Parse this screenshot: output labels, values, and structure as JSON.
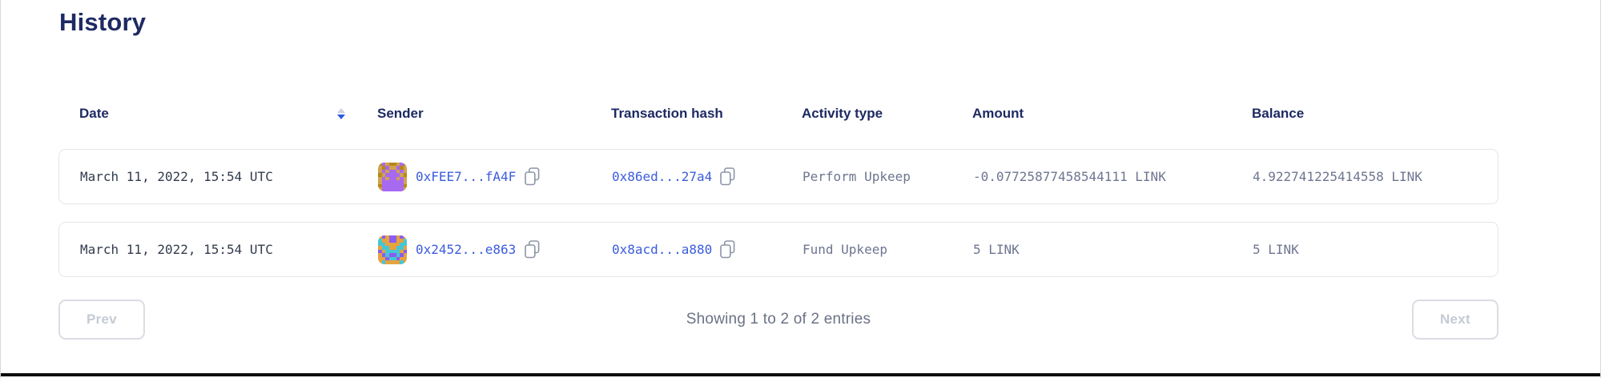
{
  "page": {
    "title": "History"
  },
  "table": {
    "columns": [
      "Date",
      "Sender",
      "Transaction hash",
      "Activity type",
      "Amount",
      "Balance"
    ],
    "sort": {
      "column": "Date",
      "direction": "desc"
    },
    "rows": [
      {
        "date": "March 11, 2022, 15:54 UTC",
        "sender": "0xFEE7...fA4F",
        "tx_hash": "0x86ed...27a4",
        "activity_type": "Perform Upkeep",
        "amount": "-0.07725877458544111 LINK",
        "balance": "4.922741225414558 LINK",
        "avatar": {
          "colors": {
            "g": "#d2a24f",
            "p": "#a869f1",
            "d": "#b5871c"
          },
          "pattern": [
            "dpgddgpd",
            "gdpggpdg",
            "gpgppgpg",
            "dgppppgd",
            "gpgppgpg",
            "gppppppg",
            "dppppppd",
            "gppppppg"
          ]
        }
      },
      {
        "date": "March 11, 2022, 15:54 UTC",
        "sender": "0x2452...e863",
        "tx_hash": "0x8acd...a880",
        "activity_type": "Fund Upkeep",
        "amount": "5 LINK",
        "balance": "5 LINK",
        "avatar": {
          "colors": {
            "o": "#e6a33e",
            "t": "#45c6d6",
            "p": "#8b5cf0"
          },
          "pattern": [
            "opoppopo",
            "tooppoot",
            "ttoooott",
            "ottootto",
            "pottttop",
            "optpptpo",
            "oopttpoo",
            "otooooto"
          ]
        }
      }
    ]
  },
  "pagination": {
    "prev_label": "Prev",
    "next_label": "Next",
    "status": "Showing 1 to 2 of 2 entries"
  },
  "colors": {
    "heading": "#1e2a63",
    "link_blue": "#3b5cde",
    "body_gray": "#6e7590",
    "sort_active": "#2f5ae0"
  }
}
